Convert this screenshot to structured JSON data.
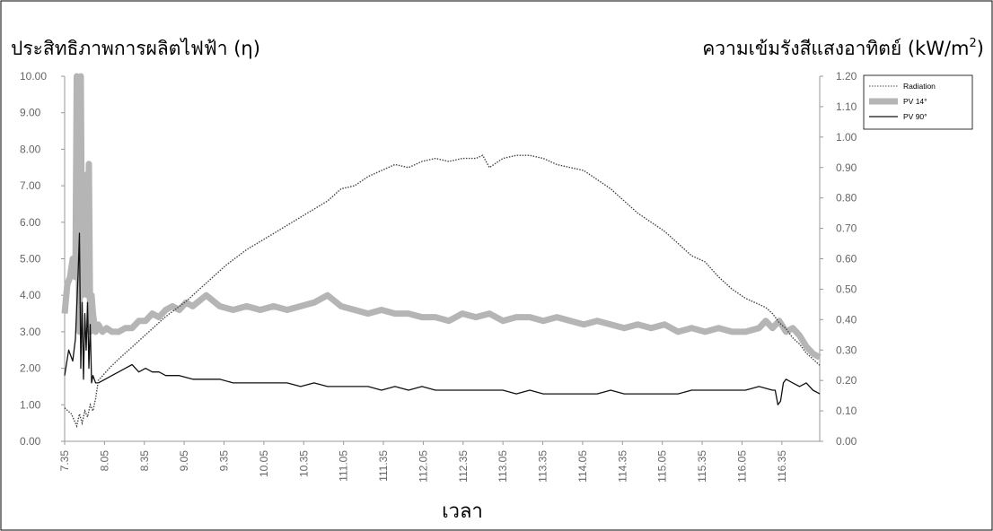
{
  "chart_data": {
    "type": "line",
    "title": "",
    "ylabel_left": "ประสิทธิภาพการผลิตไฟฟ้า (η)",
    "ylabel_right": "ความเข้มรังสีแสงอาทิตย์ (kW/m2)",
    "ylabel_right_base": "ความเข้มรังสีแสงอาทิตย์ (kW/m",
    "ylabel_right_sup": "2",
    "ylabel_right_close": ")",
    "xlabel": "เวลา",
    "x_ticks": [
      "7.35",
      "8.05",
      "8.35",
      "9.05",
      "9.35",
      "10.05",
      "10.35",
      "111.05",
      "111.35",
      "112.05",
      "112.35",
      "113.05",
      "113.35",
      "114.05",
      "114.35",
      "115.05",
      "115.35",
      "116.05",
      "116.35"
    ],
    "y_left_ticks": [
      "0.00",
      "1.00",
      "2.00",
      "3.00",
      "4.00",
      "5.00",
      "6.00",
      "7.00",
      "8.00",
      "9.00",
      "10.00"
    ],
    "y_right_ticks": [
      "0.00",
      "0.10",
      "0.20",
      "0.30",
      "0.40",
      "0.50",
      "0.60",
      "0.70",
      "0.80",
      "0.90",
      "1.00",
      "1.10",
      "1.20"
    ],
    "y_left_range": [
      0,
      10
    ],
    "y_right_range": [
      0,
      1.2
    ],
    "x_range_minutes": [
      455,
      1015
    ],
    "grid": false,
    "legend_position": "top-right",
    "legend": [
      {
        "label": "Radiation",
        "style": "dotted",
        "color": "#444444"
      },
      {
        "label": "PV 14°",
        "style": "thick",
        "color": "#b5b5b5"
      },
      {
        "label": "PV 90°",
        "style": "solid",
        "color": "#111111"
      }
    ],
    "series": [
      {
        "name": "Radiation",
        "axis": "right",
        "x": [
          455,
          460,
          462,
          464,
          466,
          468,
          470,
          472,
          474,
          476,
          478,
          480,
          484,
          488,
          495,
          505,
          515,
          530,
          545,
          560,
          575,
          590,
          605,
          620,
          635,
          650,
          660,
          670,
          680,
          690,
          700,
          710,
          720,
          730,
          740,
          750,
          760,
          765,
          770,
          780,
          790,
          800,
          810,
          820,
          830,
          840,
          850,
          860,
          870,
          880,
          890,
          900,
          910,
          920,
          930,
          940,
          950,
          960,
          970,
          975,
          980,
          985,
          990,
          995,
          1000,
          1005,
          1010,
          1015
        ],
        "y": [
          0.11,
          0.09,
          0.07,
          0.05,
          0.09,
          0.06,
          0.1,
          0.08,
          0.12,
          0.1,
          0.14,
          0.2,
          0.22,
          0.24,
          0.27,
          0.31,
          0.35,
          0.41,
          0.46,
          0.52,
          0.58,
          0.63,
          0.67,
          0.71,
          0.75,
          0.79,
          0.83,
          0.84,
          0.87,
          0.89,
          0.91,
          0.9,
          0.92,
          0.93,
          0.92,
          0.93,
          0.93,
          0.94,
          0.9,
          0.93,
          0.94,
          0.94,
          0.93,
          0.91,
          0.9,
          0.89,
          0.86,
          0.83,
          0.79,
          0.75,
          0.72,
          0.69,
          0.65,
          0.61,
          0.59,
          0.54,
          0.5,
          0.47,
          0.45,
          0.44,
          0.42,
          0.39,
          0.37,
          0.34,
          0.32,
          0.29,
          0.27,
          0.25
        ]
      },
      {
        "name": "PV 14°",
        "axis": "left",
        "x": [
          455,
          457,
          459,
          461,
          463,
          464,
          465,
          466,
          467,
          468,
          469,
          470,
          471,
          472,
          473,
          474,
          475,
          476,
          477,
          478,
          480,
          483,
          486,
          490,
          495,
          500,
          505,
          510,
          515,
          520,
          525,
          530,
          535,
          540,
          545,
          550,
          560,
          570,
          580,
          590,
          600,
          610,
          620,
          630,
          640,
          650,
          660,
          670,
          680,
          690,
          700,
          710,
          720,
          730,
          740,
          750,
          760,
          770,
          780,
          790,
          800,
          810,
          820,
          830,
          840,
          850,
          860,
          870,
          880,
          890,
          900,
          910,
          920,
          930,
          940,
          950,
          960,
          970,
          975,
          980,
          985,
          990,
          995,
          1000,
          1005,
          1010,
          1015
        ],
        "y": [
          3.5,
          4.3,
          4.5,
          5.0,
          4.5,
          10.0,
          6.0,
          3.0,
          10.0,
          4.0,
          7.0,
          6.0,
          7.3,
          4.0,
          7.6,
          3.0,
          4.0,
          3.5,
          3.2,
          3.0,
          3.2,
          3.0,
          3.1,
          3.0,
          3.0,
          3.1,
          3.1,
          3.3,
          3.3,
          3.5,
          3.4,
          3.6,
          3.7,
          3.6,
          3.8,
          3.7,
          4.0,
          3.7,
          3.6,
          3.7,
          3.6,
          3.7,
          3.6,
          3.7,
          3.8,
          4.0,
          3.7,
          3.6,
          3.5,
          3.6,
          3.5,
          3.5,
          3.4,
          3.4,
          3.3,
          3.5,
          3.4,
          3.5,
          3.3,
          3.4,
          3.4,
          3.3,
          3.4,
          3.3,
          3.2,
          3.3,
          3.2,
          3.1,
          3.2,
          3.1,
          3.2,
          3.0,
          3.1,
          3.0,
          3.1,
          3.0,
          3.0,
          3.1,
          3.3,
          3.1,
          3.3,
          3.0,
          3.1,
          2.9,
          2.6,
          2.4,
          2.3
        ]
      },
      {
        "name": "PV 90°",
        "axis": "left",
        "x": [
          455,
          458,
          461,
          463,
          465,
          466,
          467,
          468,
          469,
          470,
          471,
          472,
          473,
          474,
          475,
          476,
          477,
          478,
          480,
          485,
          490,
          495,
          500,
          505,
          510,
          515,
          520,
          525,
          530,
          540,
          550,
          560,
          570,
          580,
          590,
          600,
          610,
          620,
          630,
          640,
          650,
          660,
          670,
          680,
          690,
          700,
          710,
          720,
          730,
          740,
          750,
          760,
          770,
          780,
          790,
          800,
          810,
          820,
          830,
          840,
          850,
          860,
          870,
          880,
          890,
          900,
          910,
          920,
          930,
          940,
          950,
          960,
          970,
          980,
          982,
          984,
          986,
          988,
          990,
          995,
          1000,
          1005,
          1010,
          1015
        ],
        "y": [
          1.8,
          2.5,
          2.2,
          2.8,
          4.6,
          5.7,
          2.0,
          3.8,
          1.7,
          3.5,
          2.5,
          3.8,
          2.0,
          3.2,
          1.6,
          1.8,
          1.7,
          1.6,
          1.6,
          1.7,
          1.8,
          1.9,
          2.0,
          2.1,
          1.9,
          2.0,
          1.9,
          1.9,
          1.8,
          1.8,
          1.7,
          1.7,
          1.7,
          1.6,
          1.6,
          1.6,
          1.6,
          1.6,
          1.5,
          1.6,
          1.5,
          1.5,
          1.5,
          1.5,
          1.4,
          1.5,
          1.4,
          1.5,
          1.4,
          1.4,
          1.4,
          1.4,
          1.4,
          1.4,
          1.3,
          1.4,
          1.3,
          1.3,
          1.3,
          1.3,
          1.3,
          1.4,
          1.3,
          1.3,
          1.3,
          1.3,
          1.3,
          1.4,
          1.4,
          1.4,
          1.4,
          1.4,
          1.5,
          1.4,
          1.4,
          1.0,
          1.1,
          1.6,
          1.7,
          1.6,
          1.5,
          1.6,
          1.4,
          1.3
        ]
      }
    ]
  }
}
